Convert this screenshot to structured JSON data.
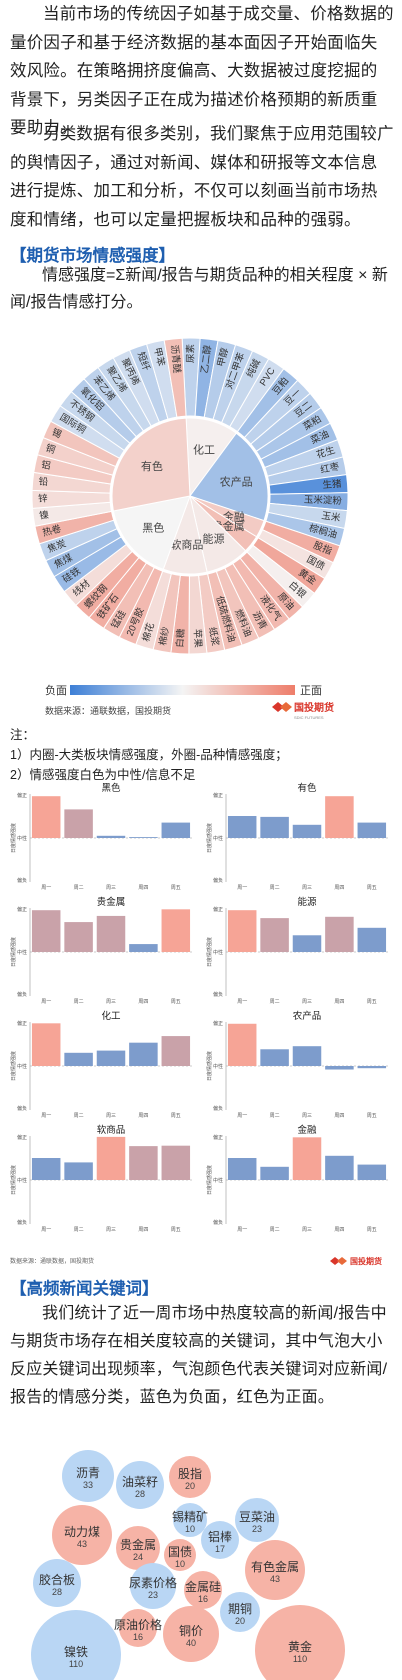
{
  "intro": {
    "p1": "当前市场的传统因子如基于成交量、价格数据的量价因子和基于经济数据的基本面因子开始面临失效风险。在策略拥挤度偏高、大数据被过度挖掘的背景下，另类因子正在成为描述价格预期的新质重要助力。",
    "p2": "另类数据有很多类别，我们聚焦于应用范围较广的舆情因子，通过对新闻、媒体和研报等文本信息进行提炼、加工和分析，不仅可以刻画当前市场热度和情绪，也可以定量把握板块和品种的强弱。"
  },
  "section1": {
    "title": "【期货市场情感强度】",
    "formula": "情感强度=Σ新闻/报告与期货品种的相关程度 × 新闻/报告情感打分。"
  },
  "sunburst": {
    "inner": [
      {
        "label": "化工",
        "value": 0.05
      },
      {
        "label": "农产品",
        "value": -0.45
      },
      {
        "label": "金融",
        "value": 0.35
      },
      {
        "label": "贵金属",
        "value": 0.45
      },
      {
        "label": "能源",
        "value": 0.1
      },
      {
        "label": "软商品",
        "value": 0.1
      },
      {
        "label": "黑色",
        "value": 0.0
      },
      {
        "label": "有色",
        "value": 0.3
      }
    ],
    "outer": [
      {
        "label": "尿素",
        "value": -0.3
      },
      {
        "label": "乙二醇",
        "value": -0.55
      },
      {
        "label": "甲醇",
        "value": -0.35
      },
      {
        "label": "对二甲苯",
        "value": -0.3
      },
      {
        "label": "纯碱",
        "value": -0.25
      },
      {
        "label": "PVC",
        "value": -0.2
      },
      {
        "label": "豆粕",
        "value": -0.45
      },
      {
        "label": "豆一",
        "value": -0.3
      },
      {
        "label": "豆二",
        "value": -0.35
      },
      {
        "label": "菜粕",
        "value": -0.4
      },
      {
        "label": "菜油",
        "value": -0.45
      },
      {
        "label": "花生",
        "value": -0.3
      },
      {
        "label": "红枣",
        "value": -0.35
      },
      {
        "label": "生猪",
        "value": -0.85
      },
      {
        "label": "玉米淀粉",
        "value": -0.6
      },
      {
        "label": "玉米",
        "value": -0.25
      },
      {
        "label": "棕榈油",
        "value": -0.4
      },
      {
        "label": "股指",
        "value": 0.6
      },
      {
        "label": "国债",
        "value": 0.15
      },
      {
        "label": "黄金",
        "value": 0.65
      },
      {
        "label": "白银",
        "value": 0.05
      },
      {
        "label": "原油",
        "value": 0.55
      },
      {
        "label": "液化气",
        "value": 0.5
      },
      {
        "label": "沥青",
        "value": 0.45
      },
      {
        "label": "燃料油",
        "value": 0.4
      },
      {
        "label": "低硫燃料油",
        "value": 0.45
      },
      {
        "label": "纸浆",
        "value": 0.35
      },
      {
        "label": "苹果",
        "value": 0.25
      },
      {
        "label": "白糖",
        "value": 0.55
      },
      {
        "label": "棉纱",
        "value": 0.4
      },
      {
        "label": "棉花",
        "value": 0.2
      },
      {
        "label": "20号胶",
        "value": 0.5
      },
      {
        "label": "锰硅",
        "value": 0.45
      },
      {
        "label": "铁矿石",
        "value": 0.6
      },
      {
        "label": "螺纹钢",
        "value": 0.6
      },
      {
        "label": "线材",
        "value": 0.2
      },
      {
        "label": "硅铁",
        "value": -0.5
      },
      {
        "label": "焦煤",
        "value": -0.45
      },
      {
        "label": "焦炭",
        "value": -0.3
      },
      {
        "label": "热卷",
        "value": 0.55
      },
      {
        "label": "镍",
        "value": 0.1
      },
      {
        "label": "锌",
        "value": 0.2
      },
      {
        "label": "铅",
        "value": 0.25
      },
      {
        "label": "铝",
        "value": 0.35
      },
      {
        "label": "铜",
        "value": 0.3
      },
      {
        "label": "锡",
        "value": 0.4
      },
      {
        "label": "国际铜",
        "value": -0.2
      },
      {
        "label": "不锈钢",
        "value": -0.25
      },
      {
        "label": "氧化铝",
        "value": -0.35
      },
      {
        "label": "苯乙烯",
        "value": -0.3
      },
      {
        "label": "聚乙烯",
        "value": -0.25
      },
      {
        "label": "聚丙烯",
        "value": -0.2
      },
      {
        "label": "短纤",
        "value": -0.3
      },
      {
        "label": "甲苯",
        "value": -0.2
      },
      {
        "label": "沥青醚",
        "value": 0.45
      }
    ],
    "legend_neg": "负面",
    "legend_pos": "正面",
    "source": "数据来源：通联数据，国投期货",
    "logo": "国投期货",
    "logo_sub": "SDIC FUTURES"
  },
  "notes": {
    "title": "注：",
    "n1": "1）内圈-大类板块情感强度，外圈-品种情感强度；",
    "n2": "2）情感强度白色为中性/信息不足"
  },
  "chart_data": [
    {
      "type": "bar",
      "title": "黑色",
      "categories": [
        "周一",
        "周二",
        "周三",
        "周四",
        "周五"
      ],
      "values": [
        0.95,
        0.65,
        0.05,
        0.02,
        0.35
      ],
      "ylabel": "日度情感强度",
      "ylim": [
        -1,
        1
      ],
      "tick_top": "偏正",
      "tick_mid": "中性",
      "tick_bot": "偏负"
    },
    {
      "type": "bar",
      "title": "有色",
      "categories": [
        "周一",
        "周二",
        "周三",
        "周四",
        "周五"
      ],
      "values": [
        0.5,
        0.48,
        0.3,
        0.95,
        0.35
      ],
      "ylabel": "日度情感强度",
      "ylim": [
        -1,
        1
      ],
      "tick_top": "偏正",
      "tick_mid": "中性",
      "tick_bot": "偏负"
    },
    {
      "type": "bar",
      "title": "贵金属",
      "categories": [
        "周一",
        "周二",
        "周三",
        "周四",
        "周五"
      ],
      "values": [
        0.95,
        0.68,
        0.82,
        0.18,
        0.97
      ],
      "ylabel": "日度情感强度",
      "ylim": [
        -1,
        1
      ],
      "tick_top": "偏正",
      "tick_mid": "中性",
      "tick_bot": "偏负"
    },
    {
      "type": "bar",
      "title": "能源",
      "categories": [
        "周一",
        "周二",
        "周三",
        "周四",
        "周五"
      ],
      "values": [
        0.95,
        0.77,
        0.38,
        0.8,
        0.55
      ],
      "ylabel": "日度情感强度",
      "ylim": [
        -1,
        1
      ],
      "tick_top": "偏正",
      "tick_mid": "中性",
      "tick_bot": "偏负"
    },
    {
      "type": "bar",
      "title": "化工",
      "categories": [
        "周一",
        "周二",
        "周三",
        "周四",
        "周五"
      ],
      "values": [
        0.97,
        0.3,
        0.35,
        0.53,
        0.68
      ],
      "ylabel": "日度情感强度",
      "ylim": [
        -1,
        1
      ],
      "tick_top": "偏正",
      "tick_mid": "中性",
      "tick_bot": "偏负"
    },
    {
      "type": "bar",
      "title": "农产品",
      "categories": [
        "周一",
        "周二",
        "周三",
        "周四",
        "周五"
      ],
      "values": [
        0.96,
        0.38,
        0.45,
        -0.08,
        -0.05
      ],
      "ylabel": "日度情感强度",
      "ylim": [
        -1,
        1
      ],
      "tick_top": "偏正",
      "tick_mid": "中性",
      "tick_bot": "偏负"
    },
    {
      "type": "bar",
      "title": "软商品",
      "categories": [
        "周一",
        "周二",
        "周三",
        "周四",
        "周五"
      ],
      "values": [
        0.5,
        0.4,
        0.98,
        0.77,
        0.78
      ],
      "ylabel": "日度情感强度",
      "ylim": [
        -1,
        1
      ],
      "tick_top": "偏正",
      "tick_mid": "中性",
      "tick_bot": "偏负"
    },
    {
      "type": "bar",
      "title": "金融",
      "categories": [
        "周一",
        "周二",
        "周三",
        "周四",
        "周五"
      ],
      "values": [
        0.5,
        0.3,
        0.97,
        0.55,
        0.35
      ],
      "ylabel": "日度情感强度",
      "ylim": [
        -1,
        1
      ],
      "tick_top": "偏正",
      "tick_mid": "中性",
      "tick_bot": "偏负"
    }
  ],
  "bars_source": "数据来源：通联数据，国投期货",
  "section2": {
    "title": "【高频新闻关键词】",
    "para": "我们统计了近一周市场中热度较高的新闻/报告中与期货市场存在相关度较高的关键词，其中气泡大小反应关键词出现频率，气泡颜色代表关键词对应新闻/报告的情感分类，蓝色为负面，红色为正面。"
  },
  "bubbles": [
    {
      "label": "沥青",
      "count": "33",
      "tone": "neg",
      "r": 26
    },
    {
      "label": "油菜籽",
      "count": "28",
      "tone": "neg",
      "r": 24
    },
    {
      "label": "股指",
      "count": "20",
      "tone": "pos",
      "r": 21
    },
    {
      "label": "锡精矿",
      "count": "10",
      "tone": "neg",
      "r": 17
    },
    {
      "label": "豆菜油",
      "count": "23",
      "tone": "neg",
      "r": 22
    },
    {
      "label": "动力煤",
      "count": "43",
      "tone": "pos",
      "r": 30
    },
    {
      "label": "贵金属",
      "count": "24",
      "tone": "pos",
      "r": 22
    },
    {
      "label": "国债",
      "count": "10",
      "tone": "pos",
      "r": 16
    },
    {
      "label": "铝棒",
      "count": "17",
      "tone": "neg",
      "r": 19
    },
    {
      "label": "有色金属",
      "count": "43",
      "tone": "pos",
      "r": 30
    },
    {
      "label": "胶合板",
      "count": "28",
      "tone": "neg",
      "r": 24
    },
    {
      "label": "尿素价格",
      "count": "23",
      "tone": "neg",
      "r": 23
    },
    {
      "label": "金属硅",
      "count": "16",
      "tone": "pos",
      "r": 19
    },
    {
      "label": "期铜",
      "count": "20",
      "tone": "neg",
      "r": 20
    },
    {
      "label": "原油价格",
      "count": "16",
      "tone": "pos",
      "r": 19
    },
    {
      "label": "铜价",
      "count": "40",
      "tone": "pos",
      "r": 28
    },
    {
      "label": "镍铁",
      "count": "110",
      "tone": "neg",
      "r": 45
    },
    {
      "label": "黄金",
      "count": "110",
      "tone": "pos",
      "r": 45
    }
  ]
}
